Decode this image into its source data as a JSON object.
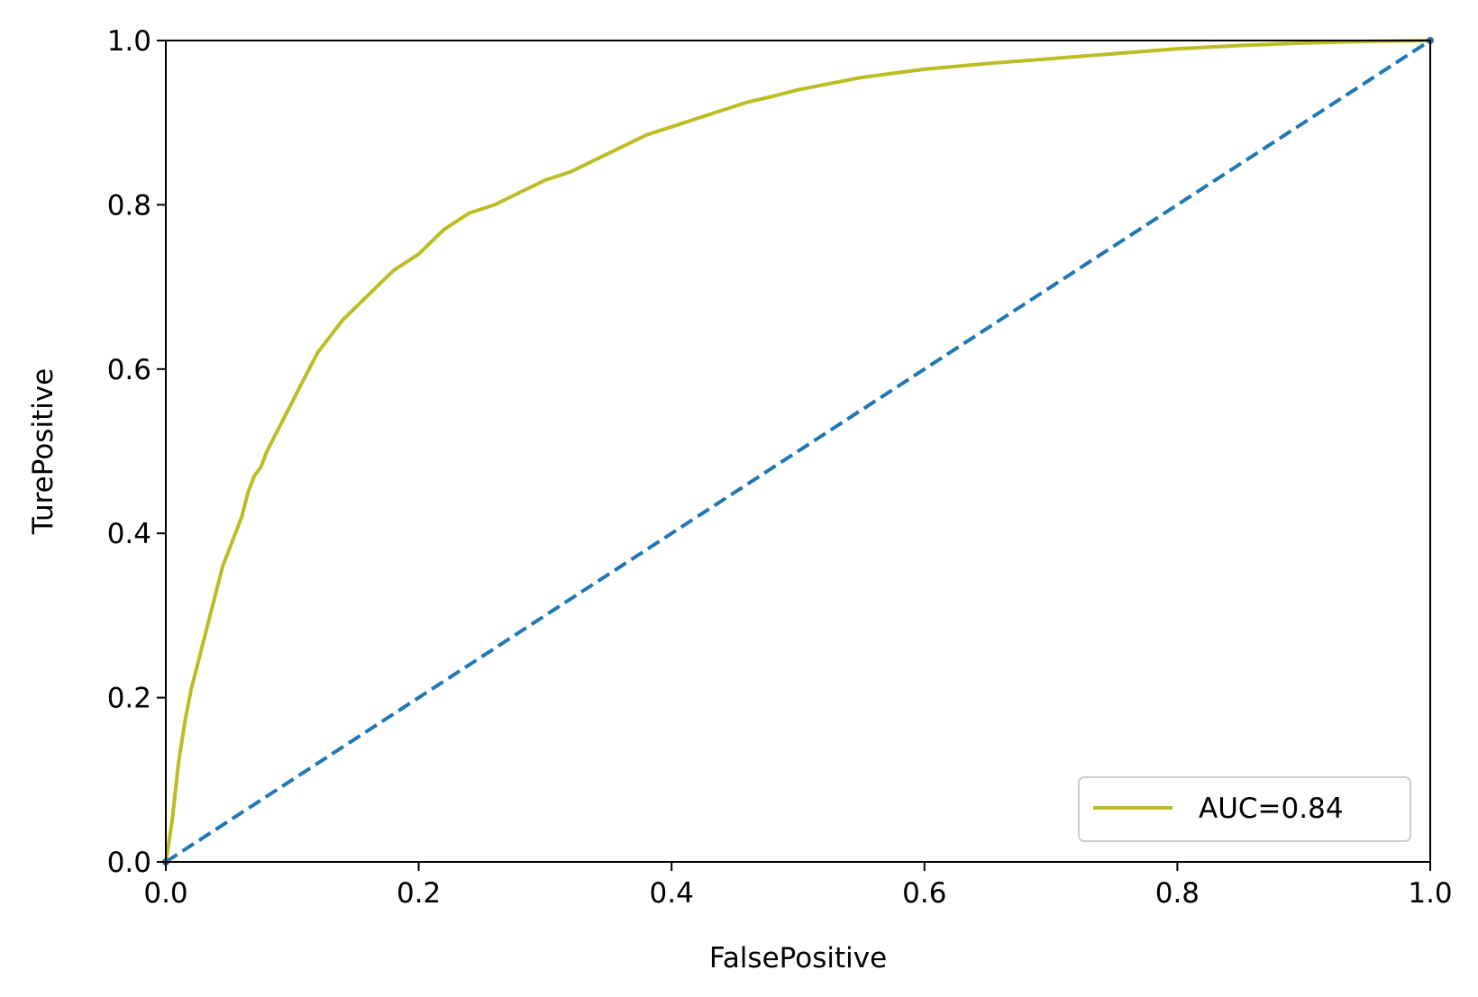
{
  "chart_data": {
    "type": "line",
    "title": "",
    "xlabel": "FalsePositive",
    "ylabel": "TurePositive",
    "xlim": [
      0.0,
      1.0
    ],
    "ylim": [
      0.0,
      1.0
    ],
    "xticks": [
      "0.0",
      "0.2",
      "0.4",
      "0.6",
      "0.8",
      "1.0"
    ],
    "yticks": [
      "0.0",
      "0.2",
      "0.4",
      "0.6",
      "0.8",
      "1.0"
    ],
    "grid": false,
    "legend_position": "lower right",
    "series": [
      {
        "name": "AUC=0.84",
        "color": "#bcbd22",
        "style": "solid",
        "x": [
          0.0,
          0.005,
          0.01,
          0.015,
          0.02,
          0.025,
          0.03,
          0.035,
          0.04,
          0.045,
          0.05,
          0.055,
          0.06,
          0.065,
          0.07,
          0.075,
          0.08,
          0.09,
          0.1,
          0.11,
          0.12,
          0.13,
          0.14,
          0.15,
          0.16,
          0.17,
          0.18,
          0.19,
          0.2,
          0.22,
          0.24,
          0.26,
          0.28,
          0.3,
          0.32,
          0.34,
          0.36,
          0.38,
          0.4,
          0.42,
          0.44,
          0.46,
          0.48,
          0.5,
          0.55,
          0.6,
          0.65,
          0.7,
          0.75,
          0.8,
          0.85,
          0.9,
          0.95,
          1.0
        ],
        "y": [
          0.0,
          0.05,
          0.12,
          0.17,
          0.21,
          0.24,
          0.27,
          0.3,
          0.33,
          0.36,
          0.38,
          0.4,
          0.42,
          0.45,
          0.47,
          0.48,
          0.5,
          0.53,
          0.56,
          0.59,
          0.62,
          0.64,
          0.66,
          0.675,
          0.69,
          0.705,
          0.72,
          0.73,
          0.74,
          0.77,
          0.79,
          0.8,
          0.815,
          0.83,
          0.84,
          0.855,
          0.87,
          0.885,
          0.895,
          0.905,
          0.915,
          0.925,
          0.932,
          0.94,
          0.955,
          0.965,
          0.972,
          0.978,
          0.984,
          0.99,
          0.994,
          0.997,
          0.999,
          1.0
        ]
      },
      {
        "name": "",
        "color": "#1f77b4",
        "style": "dashed",
        "x": [
          0.0,
          1.0
        ],
        "y": [
          0.0,
          1.0
        ]
      }
    ],
    "legend": [
      "AUC=0.84"
    ]
  }
}
